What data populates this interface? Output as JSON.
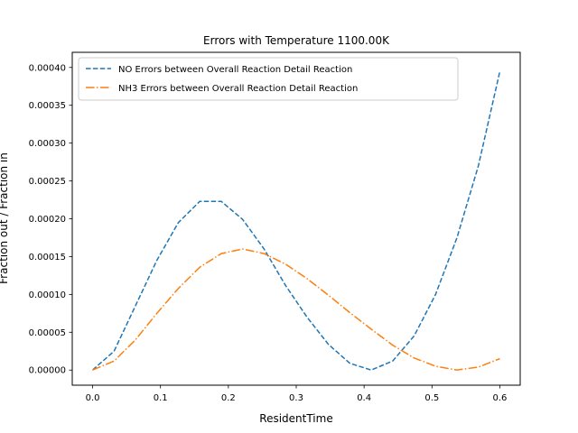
{
  "chart_data": {
    "type": "line",
    "title": "Errors with Temperature 1100.00K",
    "xlabel": "ResidentTime",
    "ylabel": "Fraction out / Fraction in",
    "xlim": [
      -0.03,
      0.63
    ],
    "ylim": [
      -2e-05,
      0.00042
    ],
    "x_ticks": [
      0.0,
      0.1,
      0.2,
      0.3,
      0.4,
      0.5,
      0.6
    ],
    "x_tick_labels": [
      "0.0",
      "0.1",
      "0.2",
      "0.3",
      "0.4",
      "0.5",
      "0.6"
    ],
    "y_ticks": [
      0.0,
      5e-05,
      0.0001,
      0.00015,
      0.0002,
      0.00025,
      0.0003,
      0.00035,
      0.0004
    ],
    "y_tick_labels": [
      "0.00000",
      "0.00005",
      "0.00010",
      "0.00015",
      "0.00020",
      "0.00025",
      "0.00030",
      "0.00035",
      "0.00040"
    ],
    "grid": false,
    "legend_position": "top-left",
    "x": [
      0.0,
      0.0316,
      0.0632,
      0.0947,
      0.1263,
      0.1579,
      0.1895,
      0.2211,
      0.2526,
      0.2842,
      0.3158,
      0.3474,
      0.3789,
      0.4105,
      0.4421,
      0.4737,
      0.5053,
      0.5368,
      0.5684,
      0.6
    ],
    "series": [
      {
        "name": "NO Errors between Overall Reaction Detail Reaction",
        "color": "#1f77b4",
        "style": "dashed",
        "values": [
          0.0,
          2.5e-05,
          8.5e-05,
          0.000145,
          0.000195,
          0.000223,
          0.000223,
          0.000199,
          0.00016,
          0.000112,
          7e-05,
          3.4e-05,
          9e-06,
          0.0,
          1.2e-05,
          4.5e-05,
          0.0001,
          0.000175,
          0.00027,
          0.000395
        ]
      },
      {
        "name": "NH3 Errors between Overall Reaction Detail Reaction",
        "color": "#ff7f0e",
        "style": "dashdot",
        "values": [
          0.0,
          1.2e-05,
          4e-05,
          7.5e-05,
          0.000108,
          0.000136,
          0.000154,
          0.00016,
          0.000154,
          0.00014,
          0.000121,
          9.9e-05,
          7.6e-05,
          5.4e-05,
          3.3e-05,
          1.6e-05,
          5e-06,
          0.0,
          4e-06,
          1.5e-05
        ]
      }
    ]
  }
}
